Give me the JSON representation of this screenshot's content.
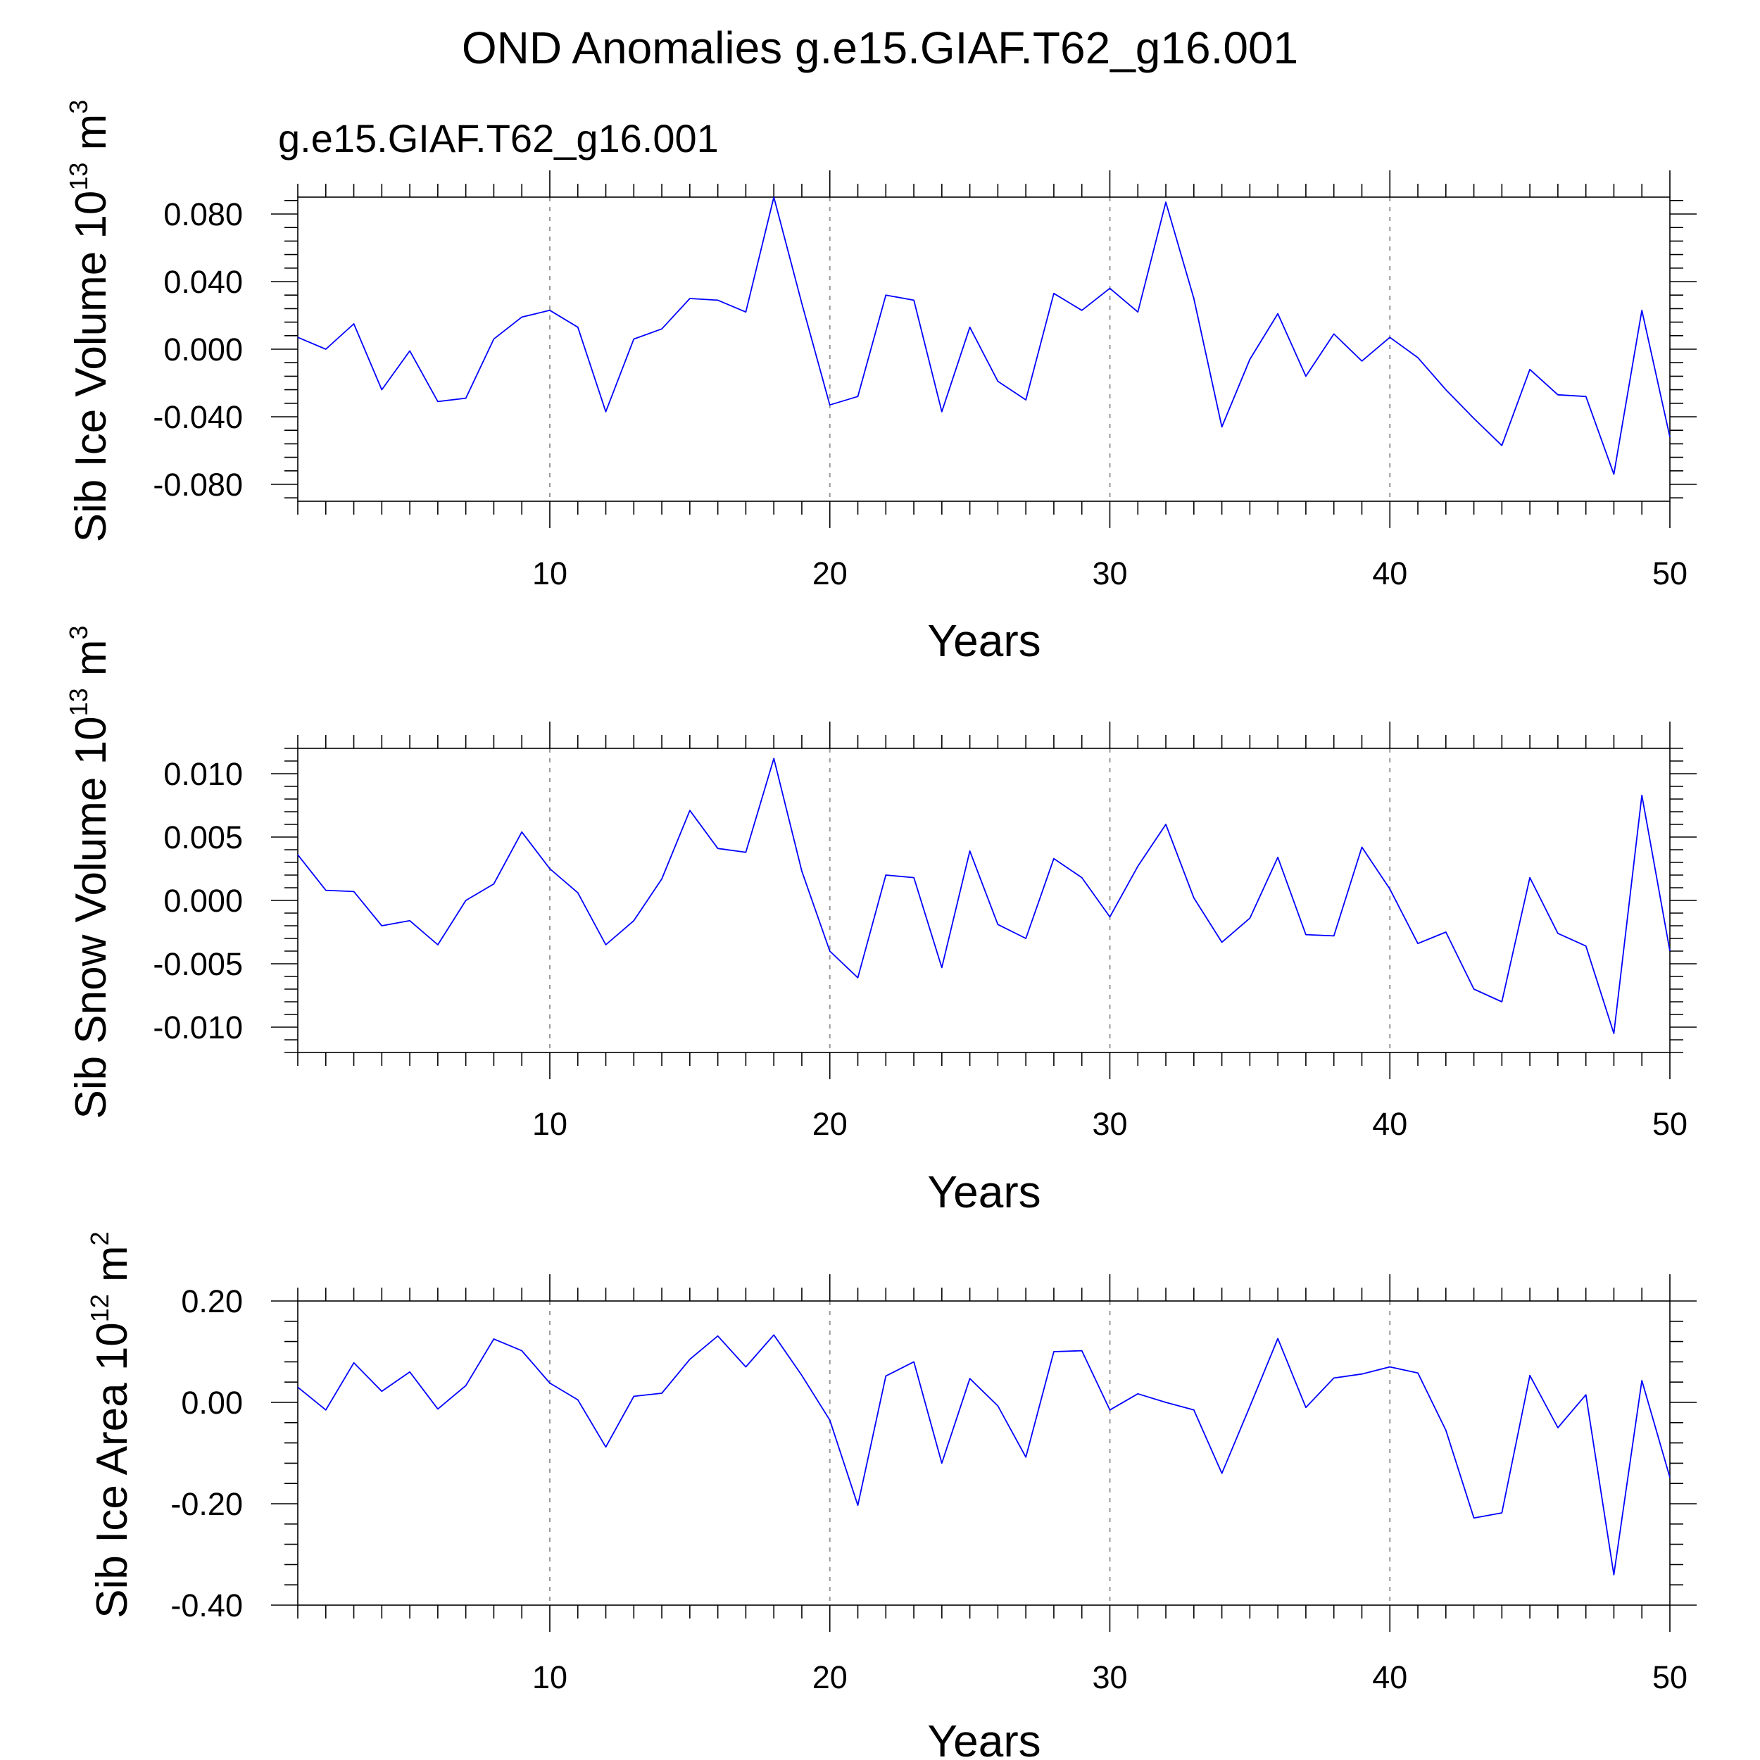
{
  "figure": {
    "title": "OND Anomalies g.e15.GIAF.T62_g16.001"
  },
  "colors": {
    "series": "#0000ff",
    "axes": "#000000",
    "grid": "#9a9a9a"
  },
  "chart_data": [
    {
      "type": "line",
      "subtitle": "g.e15.GIAF.T62_g16.001",
      "xlabel": "Years",
      "ylabel": {
        "text": "Sib Ice Volume 10",
        "exponent": "13",
        "unit": "m",
        "unit_exponent": "3"
      },
      "xlim": [
        1,
        50
      ],
      "ylim": [
        -0.09,
        0.09
      ],
      "xticks": [
        10,
        20,
        30,
        40,
        50
      ],
      "xtick_labels": [
        "10",
        "20",
        "30",
        "40",
        "50"
      ],
      "yticks": [
        0.08,
        0.04,
        0.0,
        -0.04,
        -0.08
      ],
      "ytick_labels": [
        "0.080",
        "0.040",
        "0.000",
        "-0.040",
        "-0.080"
      ],
      "ytick_minor_step": 0.008,
      "vertical_grid": true,
      "x": [
        1,
        2,
        3,
        4,
        5,
        6,
        7,
        8,
        9,
        10,
        11,
        12,
        13,
        14,
        15,
        16,
        17,
        18,
        19,
        20,
        21,
        22,
        23,
        24,
        25,
        26,
        27,
        28,
        29,
        30,
        31,
        32,
        33,
        34,
        35,
        36,
        37,
        38,
        39,
        40,
        41,
        42,
        43,
        44,
        45,
        46,
        47,
        48,
        49,
        50
      ],
      "series": [
        {
          "values": [
            0.007,
            0.0,
            0.015,
            -0.024,
            -0.001,
            -0.031,
            -0.029,
            0.006,
            0.019,
            0.023,
            0.013,
            -0.037,
            0.006,
            0.012,
            0.03,
            0.029,
            0.022,
            0.09,
            0.027,
            -0.033,
            -0.028,
            0.032,
            0.029,
            -0.037,
            0.013,
            -0.019,
            -0.03,
            0.033,
            0.023,
            0.036,
            0.022,
            0.087,
            0.03,
            -0.046,
            -0.006,
            0.021,
            -0.016,
            0.009,
            -0.007,
            0.007,
            -0.005,
            -0.024,
            -0.041,
            -0.057,
            -0.012,
            -0.027,
            -0.028,
            -0.074,
            0.023,
            -0.052
          ]
        }
      ]
    },
    {
      "type": "line",
      "xlabel": "Years",
      "ylabel": {
        "text": "Sib Snow Volume 10",
        "exponent": "13",
        "unit": "m",
        "unit_exponent": "3"
      },
      "xlim": [
        1,
        50
      ],
      "ylim": [
        -0.012,
        0.012
      ],
      "xticks": [
        10,
        20,
        30,
        40,
        50
      ],
      "xtick_labels": [
        "10",
        "20",
        "30",
        "40",
        "50"
      ],
      "yticks": [
        0.01,
        0.005,
        0.0,
        -0.005,
        -0.01
      ],
      "ytick_labels": [
        "0.010",
        "0.005",
        "0.000",
        "-0.005",
        "-0.010"
      ],
      "ytick_minor_step": 0.001,
      "vertical_grid": true,
      "x": [
        1,
        2,
        3,
        4,
        5,
        6,
        7,
        8,
        9,
        10,
        11,
        12,
        13,
        14,
        15,
        16,
        17,
        18,
        19,
        20,
        21,
        22,
        23,
        24,
        25,
        26,
        27,
        28,
        29,
        30,
        31,
        32,
        33,
        34,
        35,
        36,
        37,
        38,
        39,
        40,
        41,
        42,
        43,
        44,
        45,
        46,
        47,
        48,
        49,
        50
      ],
      "series": [
        {
          "values": [
            0.0036,
            0.0008,
            0.0007,
            -0.002,
            -0.0016,
            -0.0035,
            0.0,
            0.0013,
            0.0054,
            0.0025,
            0.0006,
            -0.0035,
            -0.0016,
            0.0017,
            0.0071,
            0.0041,
            0.0038,
            0.0112,
            0.0023,
            -0.004,
            -0.0061,
            0.002,
            0.0018,
            -0.0053,
            0.0039,
            -0.0019,
            -0.003,
            0.0033,
            0.0018,
            -0.0013,
            0.0027,
            0.006,
            0.0002,
            -0.0033,
            -0.0014,
            0.0034,
            -0.0027,
            -0.0028,
            0.0042,
            0.0009,
            -0.0034,
            -0.0025,
            -0.007,
            -0.008,
            0.0018,
            -0.0026,
            -0.0036,
            -0.0105,
            0.0083,
            -0.004
          ]
        }
      ]
    },
    {
      "type": "line",
      "xlabel": "Years",
      "ylabel": {
        "text": "Sib Ice Area 10",
        "exponent": "12",
        "unit": "m",
        "unit_exponent": "2"
      },
      "xlim": [
        1,
        50
      ],
      "ylim": [
        -0.4,
        0.2
      ],
      "xticks": [
        10,
        20,
        30,
        40,
        50
      ],
      "xtick_labels": [
        "10",
        "20",
        "30",
        "40",
        "50"
      ],
      "yticks": [
        0.2,
        0.0,
        -0.2,
        -0.4
      ],
      "ytick_labels": [
        "0.20",
        "0.00",
        "-0.20",
        "-0.40"
      ],
      "ytick_minor_step": 0.04,
      "vertical_grid": true,
      "x": [
        1,
        2,
        3,
        4,
        5,
        6,
        7,
        8,
        9,
        10,
        11,
        12,
        13,
        14,
        15,
        16,
        17,
        18,
        19,
        20,
        21,
        22,
        23,
        24,
        25,
        26,
        27,
        28,
        29,
        30,
        31,
        32,
        33,
        34,
        35,
        36,
        37,
        38,
        39,
        40,
        41,
        42,
        43,
        44,
        45,
        46,
        47,
        48,
        49,
        50
      ],
      "series": [
        {
          "values": [
            0.03,
            -0.015,
            0.078,
            0.022,
            0.06,
            -0.013,
            0.033,
            0.125,
            0.102,
            0.038,
            0.005,
            -0.088,
            0.012,
            0.018,
            0.085,
            0.131,
            0.07,
            0.133,
            0.053,
            -0.035,
            -0.203,
            0.052,
            0.08,
            -0.12,
            0.047,
            -0.007,
            -0.108,
            0.1,
            0.102,
            -0.015,
            0.017,
            0.0,
            -0.015,
            -0.14,
            -0.008,
            0.126,
            -0.01,
            0.048,
            0.056,
            0.07,
            0.058,
            -0.055,
            -0.228,
            -0.218,
            0.053,
            -0.05,
            0.015,
            -0.34,
            0.043,
            -0.148
          ]
        }
      ]
    }
  ]
}
